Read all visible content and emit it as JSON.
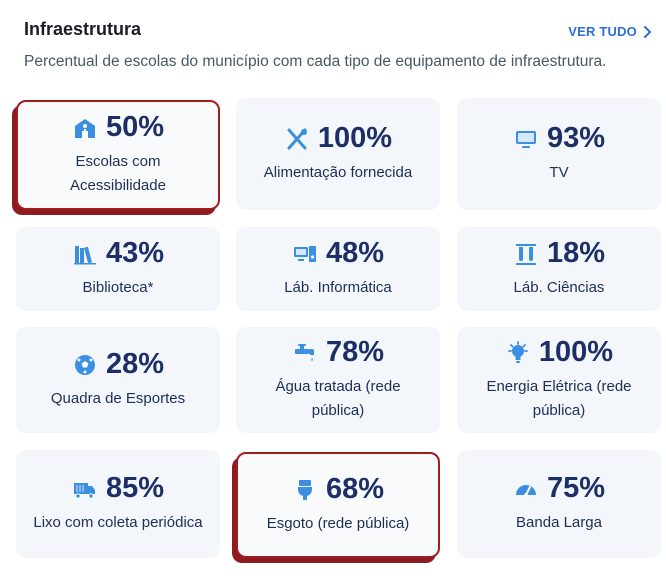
{
  "header": {
    "title": "Infraestrutura",
    "see_all_label": "VER TUDO",
    "subtitle": "Percentual de escolas do município com cada tipo de equipamento de infraestrutura."
  },
  "colors": {
    "icon": "#3a8fe0",
    "value": "#1e2f68",
    "card_bg": "#f3f6fa",
    "highlight_border": "#a01d22",
    "link": "#2b6fd6"
  },
  "cards": [
    {
      "value": "50%",
      "label": "Escolas com Acessibilidade",
      "icon": "accessibility-icon",
      "highlighted": true
    },
    {
      "value": "100%",
      "label": "Alimentação fornecida",
      "icon": "utensils-icon",
      "highlighted": false
    },
    {
      "value": "93%",
      "label": "TV",
      "icon": "tv-icon",
      "highlighted": false
    },
    {
      "value": "43%",
      "label": "Biblioteca*",
      "icon": "books-icon",
      "highlighted": false
    },
    {
      "value": "48%",
      "label": "Láb. Informática",
      "icon": "computer-icon",
      "highlighted": false
    },
    {
      "value": "18%",
      "label": "Láb. Ciências",
      "icon": "test-tubes-icon",
      "highlighted": false
    },
    {
      "value": "28%",
      "label": "Quadra de Esportes",
      "icon": "soccer-ball-icon",
      "highlighted": false
    },
    {
      "value": "78%",
      "label": "Água tratada (rede pública)",
      "icon": "faucet-icon",
      "highlighted": false
    },
    {
      "value": "100%",
      "label": "Energia Elétrica (rede pública)",
      "icon": "lightbulb-icon",
      "highlighted": false
    },
    {
      "value": "85%",
      "label": "Lixo com coleta periódica",
      "icon": "truck-icon",
      "highlighted": false
    },
    {
      "value": "68%",
      "label": "Esgoto (rede pública)",
      "icon": "toilet-icon",
      "highlighted": true
    },
    {
      "value": "75%",
      "label": "Banda Larga",
      "icon": "speedometer-icon",
      "highlighted": false
    }
  ]
}
